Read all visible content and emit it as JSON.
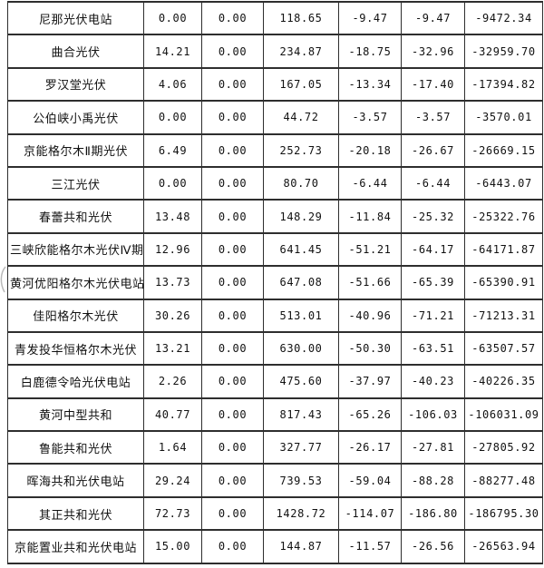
{
  "colors": {
    "background": "#ffffff",
    "border": "#2e2e2e",
    "text": "#111111"
  },
  "table": {
    "rows": [
      {
        "name": "尼那光伏电站",
        "values": [
          "0.00",
          "0.00",
          "118.65",
          "-9.47",
          "-9.47",
          "-9472.34"
        ]
      },
      {
        "name": "曲合光伏",
        "values": [
          "14.21",
          "0.00",
          "234.87",
          "-18.75",
          "-32.96",
          "-32959.70"
        ]
      },
      {
        "name": "罗汉堂光伏",
        "values": [
          "4.06",
          "0.00",
          "167.05",
          "-13.34",
          "-17.40",
          "-17394.82"
        ]
      },
      {
        "name": "公伯峡小禹光伏",
        "values": [
          "0.00",
          "0.00",
          "44.72",
          "-3.57",
          "-3.57",
          "-3570.01"
        ]
      },
      {
        "name": "京能格尔木Ⅱ期光伏",
        "values": [
          "6.49",
          "0.00",
          "252.73",
          "-20.18",
          "-26.67",
          "-26669.15"
        ]
      },
      {
        "name": "三江光伏",
        "values": [
          "0.00",
          "0.00",
          "80.70",
          "-6.44",
          "-6.44",
          "-6443.07"
        ]
      },
      {
        "name": "春蕾共和光伏",
        "values": [
          "13.48",
          "0.00",
          "148.29",
          "-11.84",
          "-25.32",
          "-25322.76"
        ]
      },
      {
        "name": "三峡欣能格尔木光伏Ⅳ期",
        "values": [
          "12.96",
          "0.00",
          "641.45",
          "-51.21",
          "-64.17",
          "-64171.87"
        ]
      },
      {
        "name": "黄河优阳格尔木光伏电站",
        "values": [
          "13.73",
          "0.00",
          "647.08",
          "-51.66",
          "-65.39",
          "-65390.91"
        ]
      },
      {
        "name": "佳阳格尔木光伏",
        "values": [
          "30.26",
          "0.00",
          "513.01",
          "-40.96",
          "-71.21",
          "-71213.31"
        ]
      },
      {
        "name": "青发投华恒格尔木光伏",
        "values": [
          "13.21",
          "0.00",
          "630.00",
          "-50.30",
          "-63.51",
          "-63507.57"
        ]
      },
      {
        "name": "白鹿德令哈光伏电站",
        "values": [
          "2.26",
          "0.00",
          "475.60",
          "-37.97",
          "-40.23",
          "-40226.35"
        ]
      },
      {
        "name": "黄河中型共和",
        "values": [
          "40.77",
          "0.00",
          "817.43",
          "-65.26",
          "-106.03",
          "-106031.09"
        ]
      },
      {
        "name": "鲁能共和光伏",
        "values": [
          "1.64",
          "0.00",
          "327.77",
          "-26.17",
          "-27.81",
          "-27805.92"
        ]
      },
      {
        "name": "晖海共和光伏电站",
        "values": [
          "29.24",
          "0.00",
          "739.53",
          "-59.04",
          "-88.28",
          "-88277.48"
        ]
      },
      {
        "name": "其正共和光伏",
        "values": [
          "72.73",
          "0.00",
          "1428.72",
          "-114.07",
          "-186.80",
          "-186795.30"
        ]
      },
      {
        "name": "京能置业共和光伏电站",
        "values": [
          "15.00",
          "0.00",
          "144.87",
          "-11.57",
          "-26.56",
          "-26563.94"
        ]
      }
    ]
  }
}
